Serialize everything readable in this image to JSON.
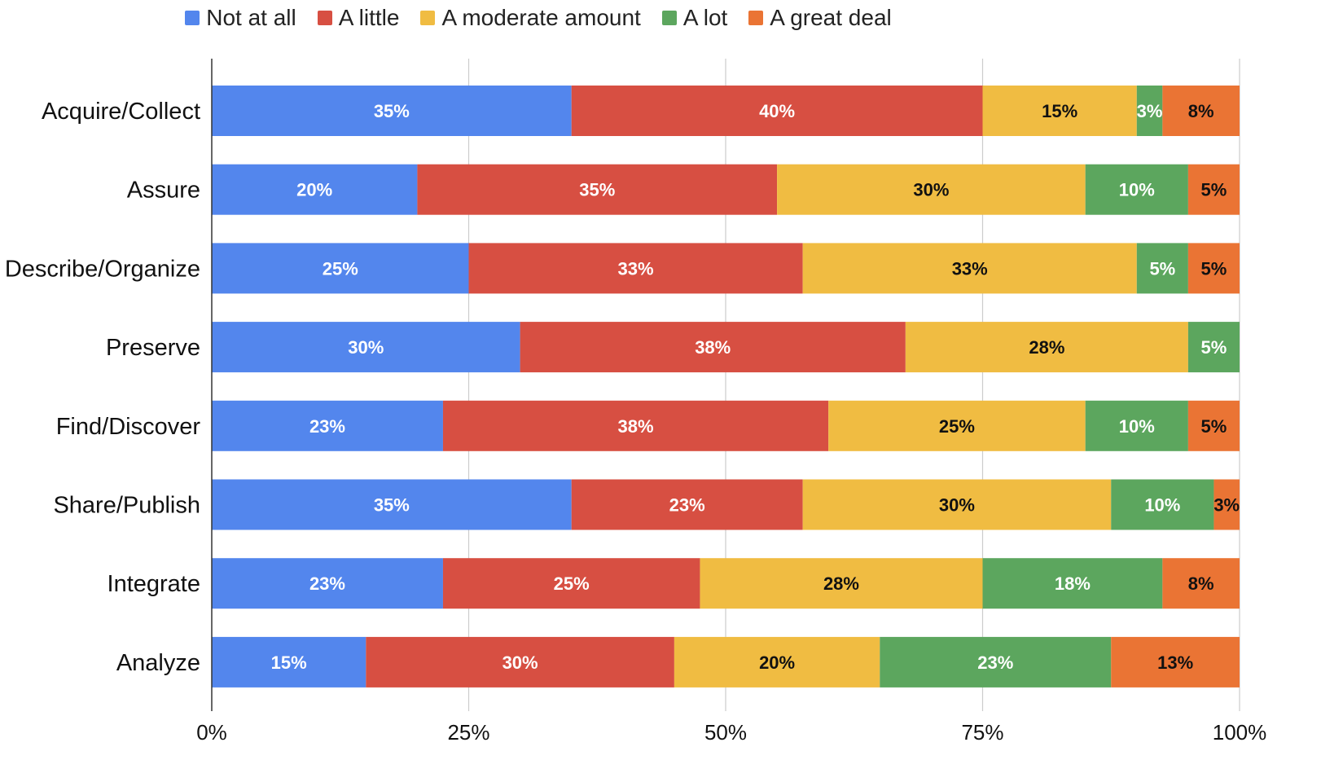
{
  "chart_data": {
    "type": "bar",
    "orientation": "horizontal",
    "stacked": true,
    "percent_stacked": true,
    "title": "",
    "xlabel": "",
    "ylabel": "",
    "xlim": [
      0,
      100
    ],
    "x_ticks": [
      "0%",
      "25%",
      "50%",
      "75%",
      "100%"
    ],
    "grid": true,
    "legend_position": "top",
    "categories": [
      "Acquire/Collect",
      "Assure",
      "Describe/Organize",
      "Preserve",
      "Find/Discover",
      "Share/Publish",
      "Integrate",
      "Analyze"
    ],
    "series": [
      {
        "name": "Not at all",
        "color": "#5386ed",
        "label_color": "#ffffff",
        "values": [
          35,
          20,
          25,
          30,
          22.5,
          35,
          22.5,
          15
        ],
        "labels": [
          "35%",
          "20%",
          "25%",
          "30%",
          "23%",
          "35%",
          "23%",
          "15%"
        ]
      },
      {
        "name": "A little",
        "color": "#d74f42",
        "label_color": "#ffffff",
        "values": [
          40,
          35,
          32.5,
          37.5,
          37.5,
          22.5,
          25,
          30
        ],
        "labels": [
          "40%",
          "35%",
          "33%",
          "38%",
          "38%",
          "23%",
          "25%",
          "30%"
        ]
      },
      {
        "name": "A moderate amount",
        "color": "#f0bc42",
        "label_color": "#111111",
        "values": [
          15,
          30,
          32.5,
          27.5,
          25,
          30,
          27.5,
          20
        ],
        "labels": [
          "15%",
          "30%",
          "33%",
          "28%",
          "25%",
          "30%",
          "28%",
          "20%"
        ]
      },
      {
        "name": "A lot",
        "color": "#5ca65e",
        "label_color": "#ffffff",
        "values": [
          2.5,
          10,
          5,
          5,
          10,
          10,
          17.5,
          22.5
        ],
        "labels": [
          "3%",
          "10%",
          "5%",
          "5%",
          "10%",
          "10%",
          "18%",
          "23%"
        ]
      },
      {
        "name": "A great deal",
        "color": "#ea7434",
        "label_color": "#111111",
        "values": [
          7.5,
          5,
          5,
          0,
          5,
          2.5,
          7.5,
          12.5
        ],
        "labels": [
          "8%",
          "5%",
          "5%",
          "",
          "5%",
          "3%",
          "8%",
          "13%"
        ]
      }
    ]
  }
}
